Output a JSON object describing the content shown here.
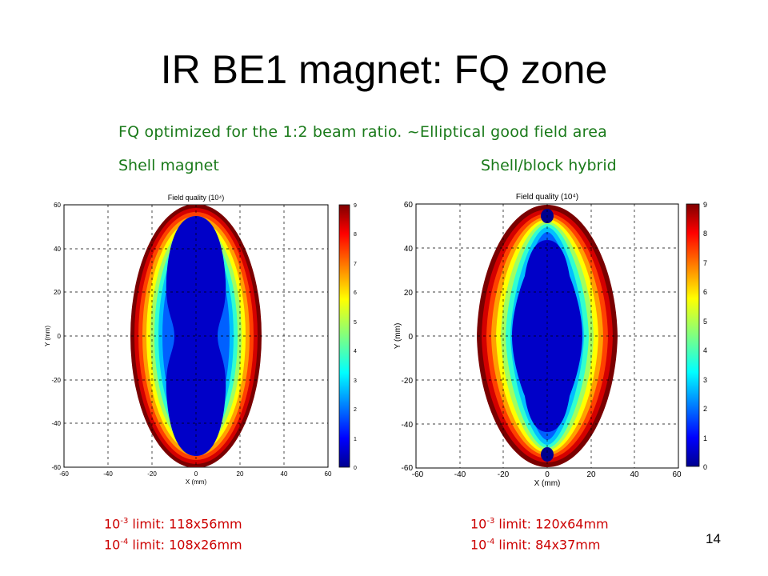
{
  "slide": {
    "title": "IR BE1 magnet: FQ zone",
    "subtitle": "FQ optimized for the 1:2 beam ratio. ~Elliptical good field area",
    "left_label": "Shell magnet",
    "right_label": "Shell/block hybrid",
    "page_number": "14"
  },
  "left_limits": [
    {
      "base": "10",
      "exp": "-3",
      "text": " limit: 118x56mm"
    },
    {
      "base": "10",
      "exp": "-4",
      "text": " limit: 108x26mm"
    }
  ],
  "right_limits": [
    {
      "base": "10",
      "exp": "-3",
      "text": " limit: 120x64mm"
    },
    {
      "base": "10",
      "exp": "-4",
      "text": " limit: 84x37mm"
    }
  ],
  "plots": {
    "left": {
      "title": "Field quality (10⁴)",
      "xlabel": "X (mm)",
      "ylabel": "Y (mm)",
      "x_ticks": [
        "-60",
        "-40",
        "-20",
        "0",
        "20",
        "40",
        "60"
      ],
      "y_ticks": [
        "60",
        "40",
        "20",
        "0",
        "-20",
        "-40",
        "-60"
      ],
      "cbar_ticks": [
        "9",
        "8",
        "7",
        "6",
        "5",
        "4",
        "3",
        "2",
        "1",
        "0"
      ]
    },
    "right": {
      "title": "Field quality (10⁴)",
      "xlabel": "X (mm)",
      "ylabel": "Y (mm)",
      "x_ticks": [
        "-60",
        "-40",
        "-20",
        "0",
        "20",
        "40",
        "60"
      ],
      "y_ticks": [
        "60",
        "40",
        "20",
        "0",
        "-20",
        "-40",
        "-60"
      ],
      "cbar_ticks": [
        "9",
        "8",
        "7",
        "6",
        "5",
        "4",
        "3",
        "2",
        "1",
        "0"
      ]
    }
  },
  "chart_data": [
    {
      "type": "heatmap",
      "title": "Field quality (10⁴)",
      "xlabel": "X (mm)",
      "ylabel": "Y (mm)",
      "xlim": [
        -60,
        60
      ],
      "ylim": [
        -60,
        60
      ],
      "colorbar_range": [
        0,
        9
      ],
      "grid": true,
      "good_field_limits_mm": {
        "1e-3": [
          118,
          56
        ],
        "1e-4": [
          108,
          26
        ]
      }
    },
    {
      "type": "heatmap",
      "title": "Field quality (10⁴)",
      "xlabel": "X (mm)",
      "ylabel": "Y (mm)",
      "xlim": [
        -60,
        60
      ],
      "ylim": [
        -60,
        60
      ],
      "colorbar_range": [
        0,
        9
      ],
      "grid": true,
      "good_field_limits_mm": {
        "1e-3": [
          120,
          64
        ],
        "1e-4": [
          84,
          37
        ]
      }
    }
  ]
}
